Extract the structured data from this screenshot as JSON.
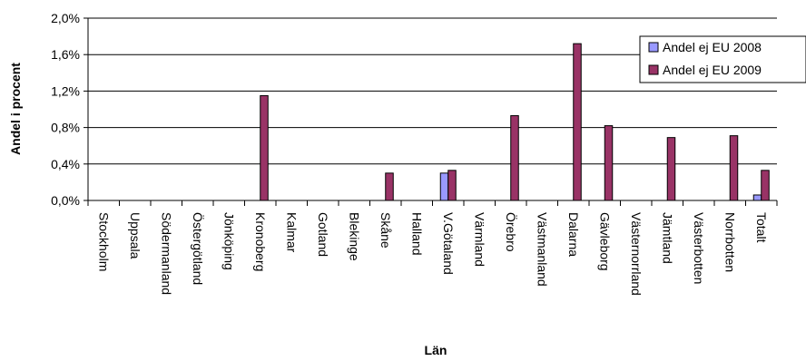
{
  "chart_data": {
    "type": "bar",
    "title": "",
    "xlabel": "Län",
    "ylabel": "Andel i procent",
    "ylim": [
      0,
      2.0
    ],
    "yticks": [
      "0,0%",
      "0,4%",
      "0,8%",
      "1,2%",
      "1,6%",
      "2,0%"
    ],
    "grid": true,
    "legend": "top-right",
    "categories": [
      "Stockholm",
      "Uppsala",
      "Södermanland",
      "Östergötland",
      "Jönköping",
      "Kronoberg",
      "Kalmar",
      "Gotland",
      "Blekinge",
      "Skåne",
      "Halland",
      "V.Götaland",
      "Värmland",
      "Örebro",
      "Västmanland",
      "Dalarna",
      "Gävleborg",
      "Västernorrland",
      "Jämtland",
      "Västerbotten",
      "Norrbotten",
      "Totalt"
    ],
    "series": [
      {
        "name": "Andel ej EU 2008",
        "color": "#9999ff",
        "values": [
          0,
          0,
          0,
          0,
          0,
          0,
          0,
          0,
          0,
          0,
          0,
          0.3,
          0,
          0,
          0,
          0,
          0,
          0,
          0,
          0,
          0,
          0.06
        ]
      },
      {
        "name": "Andel ej EU 2009",
        "color": "#993366",
        "values": [
          0,
          0,
          0,
          0,
          0,
          1.15,
          0,
          0,
          0,
          0.3,
          0,
          0.33,
          0,
          0.93,
          0,
          1.72,
          0.82,
          0,
          0.69,
          0,
          0.71,
          0.33
        ]
      }
    ]
  }
}
